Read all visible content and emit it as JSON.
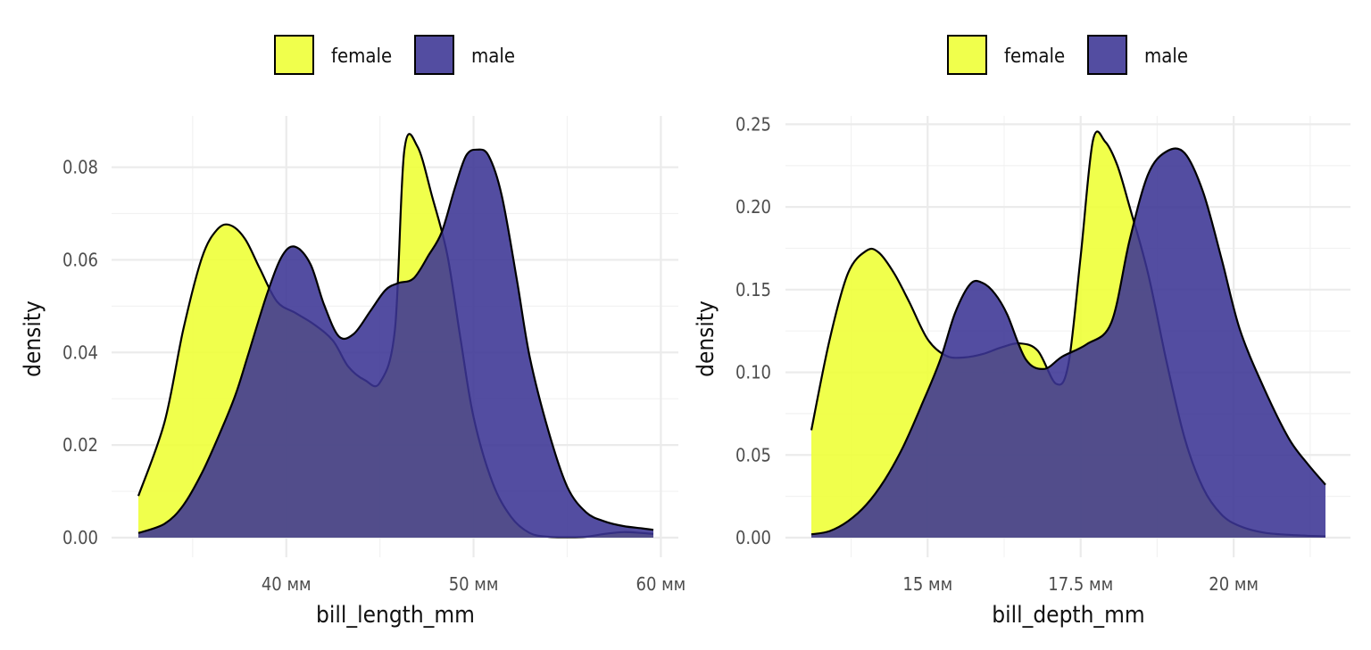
{
  "colors": {
    "female": "#eeff33",
    "male": "#3b3494",
    "outline": "#000000"
  },
  "chart_data": [
    {
      "type": "area",
      "xlabel": "bill_length_mm",
      "ylabel": "density",
      "xlim": [
        32.1,
        59.6
      ],
      "ylim": [
        0,
        0.0855
      ],
      "x_ticks": [
        40,
        50,
        60
      ],
      "x_tick_labels": [
        "40 мм",
        "50 мм",
        "60 мм"
      ],
      "y_ticks": [
        0,
        0.02,
        0.04,
        0.06,
        0.08
      ],
      "y_tick_labels": [
        "0.00",
        "0.02",
        "0.04",
        "0.06",
        "0.08"
      ],
      "legend": {
        "position": "top",
        "entries": [
          "female",
          "male"
        ]
      },
      "grid": true,
      "series": [
        {
          "name": "female",
          "x": [
            32.1,
            33.5,
            34.5,
            35.5,
            36.3,
            37.0,
            37.8,
            38.6,
            39.5,
            40.5,
            41.5,
            42.5,
            43.3,
            44.2,
            45.0,
            45.8,
            46.3,
            47.0,
            47.8,
            48.6,
            49.3,
            50.0,
            51.0,
            52.0,
            53.0,
            54.0,
            55.0,
            56.0,
            57.0,
            58.0,
            59.0,
            59.6
          ],
          "y": [
            0.009,
            0.025,
            0.045,
            0.0605,
            0.0665,
            0.0675,
            0.0645,
            0.058,
            0.051,
            0.0485,
            0.046,
            0.0425,
            0.037,
            0.034,
            0.0335,
            0.045,
            0.0835,
            0.0845,
            0.0735,
            0.061,
            0.043,
            0.026,
            0.012,
            0.0045,
            0.001,
            0.0002,
            0.0001,
            0.0002,
            0.0008,
            0.0012,
            0.001,
            0.0008
          ]
        },
        {
          "name": "male",
          "x": [
            32.1,
            33.5,
            34.5,
            35.5,
            36.5,
            37.3,
            38.0,
            39.0,
            39.8,
            40.5,
            41.3,
            42.0,
            42.8,
            43.6,
            44.5,
            45.3,
            46.0,
            46.8,
            47.6,
            48.3,
            49.0,
            49.6,
            50.2,
            50.8,
            51.5,
            52.3,
            53.0,
            54.0,
            55.0,
            56.0,
            57.0,
            58.0,
            59.0,
            59.6
          ],
          "y": [
            0.001,
            0.003,
            0.007,
            0.014,
            0.023,
            0.031,
            0.04,
            0.053,
            0.061,
            0.0628,
            0.059,
            0.0505,
            0.0435,
            0.044,
            0.049,
            0.0535,
            0.055,
            0.056,
            0.061,
            0.066,
            0.0755,
            0.0825,
            0.0838,
            0.0825,
            0.074,
            0.056,
            0.039,
            0.023,
            0.011,
            0.0055,
            0.0035,
            0.0025,
            0.002,
            0.0017
          ]
        }
      ]
    },
    {
      "type": "area",
      "xlabel": "bill_depth_mm",
      "ylabel": "density",
      "xlim": [
        13.1,
        21.5
      ],
      "ylim": [
        0,
        0.2475
      ],
      "x_ticks": [
        15,
        17.5,
        20
      ],
      "x_tick_labels": [
        "15 мм",
        "17.5 мм",
        "20 мм"
      ],
      "y_ticks": [
        0,
        0.05,
        0.1,
        0.15,
        0.2,
        0.25
      ],
      "y_tick_labels": [
        "0.00",
        "0.05",
        "0.10",
        "0.15",
        "0.20",
        "0.25"
      ],
      "legend": {
        "position": "top",
        "entries": [
          "female",
          "male"
        ]
      },
      "grid": true,
      "series": [
        {
          "name": "female",
          "x": [
            13.1,
            13.4,
            13.7,
            14.0,
            14.2,
            14.45,
            14.7,
            15.0,
            15.3,
            15.6,
            15.9,
            16.2,
            16.5,
            16.8,
            17.1,
            17.3,
            17.5,
            17.7,
            17.9,
            18.1,
            18.3,
            18.6,
            18.9,
            19.2,
            19.5,
            19.8,
            20.1,
            20.5,
            21.0,
            21.5
          ],
          "y": [
            0.065,
            0.12,
            0.16,
            0.1735,
            0.1725,
            0.16,
            0.1425,
            0.12,
            0.11,
            0.109,
            0.111,
            0.115,
            0.1175,
            0.113,
            0.093,
            0.105,
            0.17,
            0.24,
            0.2395,
            0.225,
            0.2,
            0.16,
            0.107,
            0.06,
            0.03,
            0.014,
            0.007,
            0.003,
            0.0015,
            0.0008
          ]
        },
        {
          "name": "male",
          "x": [
            13.1,
            13.4,
            13.7,
            14.0,
            14.3,
            14.6,
            14.9,
            15.2,
            15.45,
            15.7,
            15.9,
            16.1,
            16.3,
            16.6,
            16.9,
            17.2,
            17.6,
            18.0,
            18.3,
            18.6,
            18.9,
            19.2,
            19.5,
            19.8,
            20.1,
            20.5,
            20.9,
            21.2,
            21.5
          ],
          "y": [
            0.002,
            0.004,
            0.01,
            0.02,
            0.035,
            0.055,
            0.08,
            0.107,
            0.136,
            0.1535,
            0.154,
            0.1475,
            0.135,
            0.108,
            0.102,
            0.1095,
            0.117,
            0.13,
            0.18,
            0.2195,
            0.2335,
            0.2325,
            0.209,
            0.169,
            0.126,
            0.09,
            0.06,
            0.045,
            0.032
          ]
        }
      ]
    }
  ]
}
